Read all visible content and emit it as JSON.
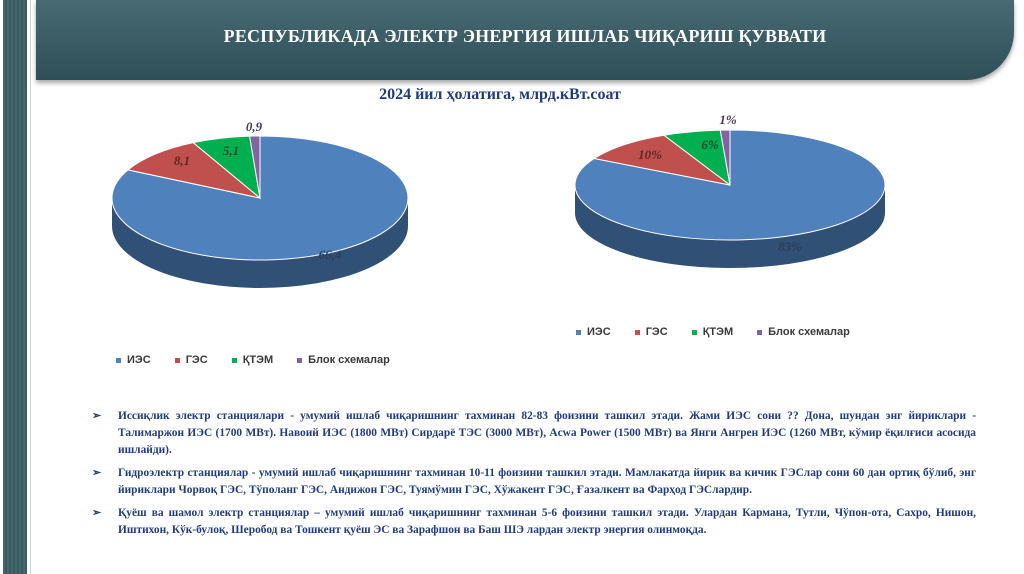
{
  "header": {
    "title": "РЕСПУБЛИКАДА ЭЛЕКТР ЭНЕРГИЯ ИШЛАБ ЧИҚАРИШ ҚУВВАТИ",
    "subtitle": "2024 йил ҳолатига, млрд.кВт.соат"
  },
  "colors": {
    "banner": "#3c5c64",
    "text_blue": "#1f3d7a",
    "ies": "#4f81bd",
    "ges": "#c0504d",
    "ktem": "#00b050",
    "blok": "#8064a2"
  },
  "chart_data": [
    {
      "type": "pie",
      "title": "",
      "categories": [
        "ИЭС",
        "ГЭС",
        "ҚТЭМ",
        "Блок схемалар"
      ],
      "values": [
        66.4,
        8.1,
        5.1,
        0.9
      ],
      "data_labels": [
        "66,4",
        "8,1",
        "5,1",
        "0,9"
      ],
      "legend": "bottom-left"
    },
    {
      "type": "pie",
      "title": "",
      "categories": [
        "ИЭС",
        "ГЭС",
        "ҚТЭМ",
        "Блок схемалар"
      ],
      "values": [
        83,
        10,
        6,
        1
      ],
      "data_labels": [
        "83%",
        "10%",
        "6%",
        "1%"
      ],
      "legend": "bottom-right"
    }
  ],
  "bullets": [
    "Иссиқлик электр станциялари - умумий ишлаб чиқаришнинг тахминан 82-83 фоизини ташкил этади. Жами ИЭС сони ?? Дона, шундан энг йириклари - Талимаржон ИЭС (1700 МВт). Навоий ИЭС (1800 МВт) Сирдарё ТЭС (3000 МВт), Acwa Power (1500 МВт) ва Янги Ангрен ИЭС (1260 МВт, кўмир ёқилғиси асосида ишлайди).",
    "Гидроэлектр станциялар - умумий ишлаб чиқаришнинг тахминан 10-11 фоизини ташкил этади. Мамлакатда йирик ва кичик ГЭСлар сони 60 дан ортиқ бўлиб, энг йириклари Чорвоқ ГЭС, Тўполанг ГЭС, Андижон ГЭС, Туямўмин ГЭС, Хўжакент ГЭС, Ғазалкент ва Фарҳод ГЭСлардир.",
    "Қуёш ва шамол электр станциялар – умумий ишлаб чиқаришнинг тахминан 5-6 фоизини ташкил этади. Улардан Кармана, Тутли, Чўпон-ота, Сахро, Нишон, Иштихон, Кўк-булоқ, Шеробод ва Тошкент қуёш ЭС ва Зарафшон ва Баш ШЭ лардан электр энергия олинмоқда."
  ],
  "bullet_marker": "➢"
}
